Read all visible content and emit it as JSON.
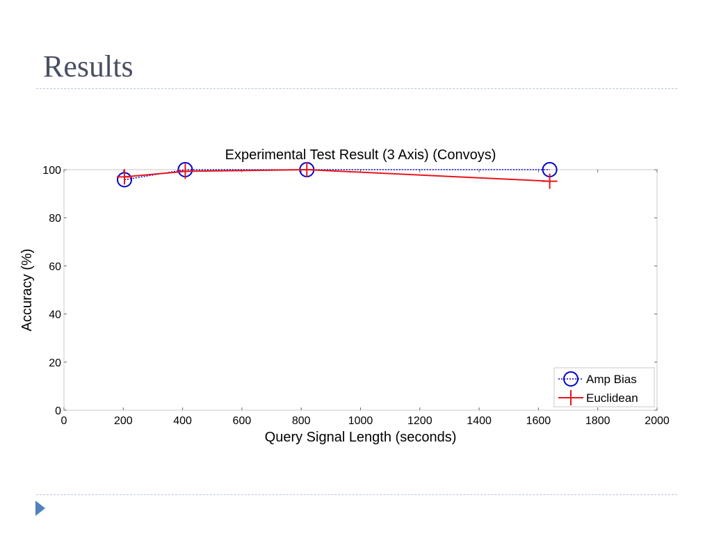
{
  "slide": {
    "title": "Results",
    "footer_icon": "triangle-bullet-icon",
    "accent_color": "#4f81bd"
  },
  "chart_data": {
    "type": "line",
    "title": "Experimental Test Result (3 Axis) (Convoys)",
    "xlabel": "Query Signal Length (seconds)",
    "ylabel": "Accuracy (%)",
    "xlim": [
      0,
      2000
    ],
    "ylim": [
      0,
      100
    ],
    "x_ticks": [
      0,
      200,
      400,
      600,
      800,
      1000,
      1200,
      1400,
      1600,
      1800,
      2000
    ],
    "y_ticks": [
      0,
      20,
      40,
      60,
      80,
      100
    ],
    "grid": false,
    "legend_position": "bottom-right",
    "series": [
      {
        "name": "Amp Bias",
        "color": "#0000cc",
        "line_style": "dotted",
        "marker": "circle",
        "x": [
          204,
          409,
          819,
          1638
        ],
        "y": [
          95.8,
          100,
          100,
          100
        ]
      },
      {
        "name": "Euclidean",
        "color": "#e8141b",
        "line_style": "solid",
        "marker": "plus",
        "x": [
          204,
          409,
          819,
          1638
        ],
        "y": [
          97,
          99.3,
          100,
          95.2
        ]
      }
    ]
  }
}
